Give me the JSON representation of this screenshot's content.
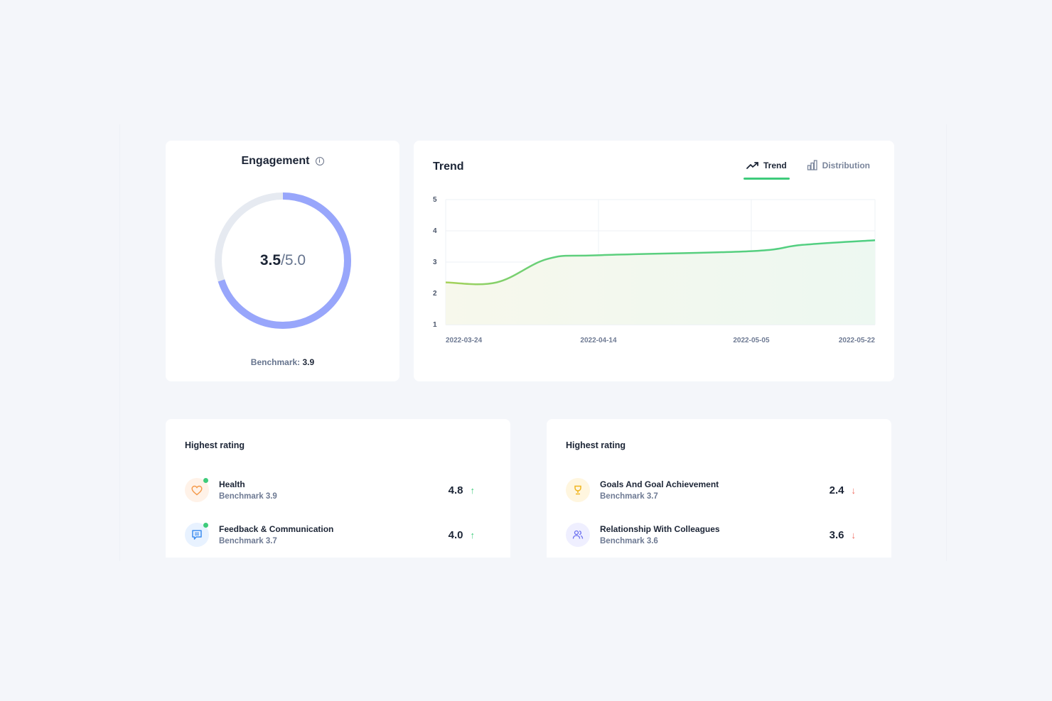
{
  "engagement": {
    "title": "Engagement",
    "info_icon": "info-icon",
    "score": "3.5",
    "max": "/5.0",
    "score_value": 3.5,
    "max_value": 5.0,
    "benchmark_label": "Benchmark:",
    "benchmark_value": "3.9",
    "colors": {
      "progress": "#98a6fb",
      "track": "#e6eaf1"
    }
  },
  "trend": {
    "title": "Trend",
    "tabs": [
      {
        "label": "Trend",
        "icon": "trend-line-icon",
        "active": true
      },
      {
        "label": "Distribution",
        "icon": "bar-chart-icon",
        "active": false
      }
    ]
  },
  "chart_data": {
    "type": "area",
    "title": "Trend",
    "x": [
      "2022-03-24",
      "2022-04-14",
      "2022-05-05",
      "2022-05-22"
    ],
    "x_tick_labels": [
      "2022-03-24",
      "2022-04-14",
      "2022-05-05",
      "2022-05-22"
    ],
    "y_tick_labels": [
      "5",
      "4",
      "3",
      "2",
      "1"
    ],
    "ylim": [
      1,
      5
    ],
    "grid": true,
    "series": [
      {
        "name": "Engagement",
        "points": [
          {
            "x": "2022-03-24",
            "y": 2.35
          },
          {
            "x": "2022-03-31",
            "y": 2.35
          },
          {
            "x": "2022-04-07",
            "y": 3.1
          },
          {
            "x": "2022-04-14",
            "y": 3.22
          },
          {
            "x": "2022-05-05",
            "y": 3.35
          },
          {
            "x": "2022-05-12",
            "y": 3.55
          },
          {
            "x": "2022-05-22",
            "y": 3.7
          }
        ],
        "color": "#4fcf82"
      }
    ]
  },
  "ratings": [
    {
      "title": "Highest rating",
      "items": [
        {
          "name": "Health",
          "benchmark": "Benchmark 3.9",
          "score": "4.8",
          "trend": "up",
          "icon": "heart-icon",
          "icon_bg": "#fff2e8",
          "icon_color": "#f59b4c",
          "dot": true
        },
        {
          "name": "Feedback & Communication",
          "benchmark": "Benchmark 3.7",
          "score": "4.0",
          "trend": "up",
          "icon": "chat-icon",
          "icon_bg": "#e8f2ff",
          "icon_color": "#3e8ef0",
          "dot": true
        }
      ]
    },
    {
      "title": "Highest rating",
      "items": [
        {
          "name": "Goals And Goal Achievement",
          "benchmark": "Benchmark 3.7",
          "score": "2.4",
          "trend": "down",
          "icon": "trophy-icon",
          "icon_bg": "#fff6df",
          "icon_color": "#f0b51e",
          "dot": false
        },
        {
          "name": "Relationship With Colleagues",
          "benchmark": "Benchmark 3.6",
          "score": "3.6",
          "trend": "down",
          "icon": "users-icon",
          "icon_bg": "#efefff",
          "icon_color": "#6b6ff0",
          "dot": false
        }
      ]
    }
  ]
}
